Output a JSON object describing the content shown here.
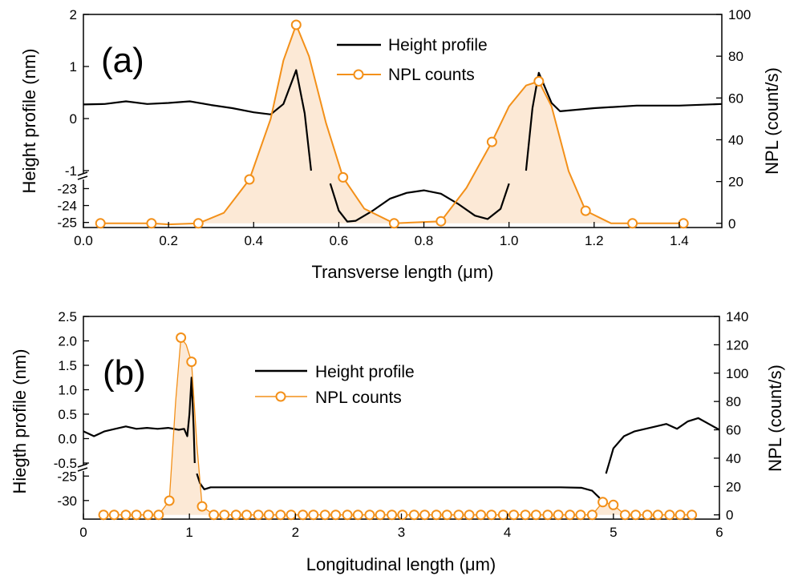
{
  "colors": {
    "height": "#000000",
    "npl": "#F39019",
    "fill": "#FCE9D6"
  },
  "chart_data": [
    {
      "type": "line",
      "panel_label": "(a)",
      "xlabel": "Transverse length (μm)",
      "ylabel_left": "Height profile (nm)",
      "ylabel_right": "NPL (count/s)",
      "xlim": [
        0,
        1.5
      ],
      "x_ticks": [
        "0.0",
        "0.2",
        "0.4",
        "0.6",
        "0.8",
        "1.0",
        "1.2",
        "1.4"
      ],
      "y_left_ticks_upper": [
        "2",
        "1",
        "0",
        "-1"
      ],
      "y_left_ticks_lower": [
        "-23",
        "-24",
        "-25"
      ],
      "y_left_upper_range": [
        -1,
        2
      ],
      "y_left_lower_range": [
        -25.3,
        -22.6
      ],
      "y_right_ticks": [
        "0",
        "20",
        "40",
        "60",
        "80",
        "100"
      ],
      "y_right_range": [
        -2,
        100
      ],
      "legend": [
        "Height profile",
        "NPL counts"
      ],
      "legend_position": "top-center",
      "series": [
        {
          "name": "Height profile",
          "segments": [
            [
              [
                0,
                0.27
              ],
              [
                0.05,
                0.28
              ],
              [
                0.1,
                0.33
              ],
              [
                0.15,
                0.28
              ],
              [
                0.2,
                0.3
              ],
              [
                0.25,
                0.33
              ],
              [
                0.3,
                0.26
              ],
              [
                0.35,
                0.2
              ],
              [
                0.4,
                0.12
              ],
              [
                0.44,
                0.08
              ],
              [
                0.47,
                0.28
              ],
              [
                0.5,
                0.93
              ],
              [
                0.52,
                0.1
              ],
              [
                0.535,
                -1.0
              ]
            ],
            [
              [
                0.58,
                -22.7
              ],
              [
                0.6,
                -24.3
              ],
              [
                0.62,
                -24.95
              ],
              [
                0.64,
                -24.9
              ],
              [
                0.68,
                -24.3
              ],
              [
                0.72,
                -23.6
              ],
              [
                0.76,
                -23.25
              ],
              [
                0.8,
                -23.1
              ],
              [
                0.84,
                -23.3
              ],
              [
                0.88,
                -23.9
              ],
              [
                0.92,
                -24.6
              ],
              [
                0.95,
                -24.8
              ],
              [
                0.98,
                -24.2
              ],
              [
                1.0,
                -22.7
              ]
            ],
            [
              [
                1.04,
                -1.0
              ],
              [
                1.055,
                0.2
              ],
              [
                1.07,
                0.88
              ],
              [
                1.1,
                0.3
              ],
              [
                1.12,
                0.14
              ],
              [
                1.2,
                0.2
              ],
              [
                1.3,
                0.25
              ],
              [
                1.4,
                0.25
              ],
              [
                1.5,
                0.28
              ]
            ]
          ]
        },
        {
          "name": "NPL counts",
          "markers": [
            [
              0.04,
              0
            ],
            [
              0.16,
              0
            ],
            [
              0.27,
              0
            ],
            [
              0.39,
              21
            ],
            [
              0.5,
              95
            ],
            [
              0.61,
              22
            ],
            [
              0.73,
              0
            ],
            [
              0.84,
              1
            ],
            [
              0.96,
              39
            ],
            [
              1.07,
              68
            ],
            [
              1.18,
              6
            ],
            [
              1.29,
              0
            ],
            [
              1.41,
              0
            ]
          ],
          "curve": [
            [
              0.04,
              0
            ],
            [
              0.16,
              0
            ],
            [
              0.2,
              -0.5
            ],
            [
              0.27,
              0
            ],
            [
              0.33,
              5
            ],
            [
              0.39,
              21
            ],
            [
              0.44,
              50
            ],
            [
              0.47,
              78
            ],
            [
              0.5,
              95
            ],
            [
              0.53,
              80
            ],
            [
              0.57,
              48
            ],
            [
              0.61,
              22
            ],
            [
              0.66,
              7
            ],
            [
              0.73,
              0
            ],
            [
              0.84,
              1
            ],
            [
              0.9,
              17
            ],
            [
              0.96,
              39
            ],
            [
              1.0,
              56
            ],
            [
              1.04,
              66
            ],
            [
              1.07,
              68
            ],
            [
              1.1,
              56
            ],
            [
              1.14,
              25
            ],
            [
              1.18,
              6
            ],
            [
              1.24,
              0
            ],
            [
              1.29,
              0
            ],
            [
              1.41,
              0
            ]
          ]
        }
      ]
    },
    {
      "type": "line",
      "panel_label": "(b)",
      "xlabel": "Longitudinal length (μm)",
      "ylabel_left": "Hiegth profile (nm)",
      "ylabel_right": "NPL (count/s)",
      "xlim": [
        0,
        6
      ],
      "x_ticks": [
        "0",
        "1",
        "2",
        "3",
        "4",
        "5",
        "6"
      ],
      "y_left_ticks_upper": [
        "2.5",
        "2.0",
        "1.5",
        "1.0",
        "0.5",
        "0.0",
        "-0.5"
      ],
      "y_left_ticks_lower": [
        "-25",
        "-30"
      ],
      "y_left_upper_range": [
        -0.5,
        2.5
      ],
      "y_left_lower_range": [
        -33.8,
        -24.3
      ],
      "y_right_ticks": [
        "0",
        "20",
        "40",
        "60",
        "80",
        "100",
        "120",
        "140"
      ],
      "y_right_range": [
        -3,
        140
      ],
      "legend": [
        "Height profile",
        "NPL counts"
      ],
      "legend_position": "top-center",
      "series": [
        {
          "name": "Height profile",
          "segments": [
            [
              [
                0,
                0.15
              ],
              [
                0.1,
                0.05
              ],
              [
                0.2,
                0.15
              ],
              [
                0.3,
                0.2
              ],
              [
                0.4,
                0.25
              ],
              [
                0.5,
                0.2
              ],
              [
                0.6,
                0.22
              ],
              [
                0.7,
                0.2
              ],
              [
                0.8,
                0.22
              ],
              [
                0.9,
                0.18
              ],
              [
                0.95,
                0.2
              ],
              [
                0.98,
                0.05
              ],
              [
                1.0,
                0.5
              ],
              [
                1.02,
                1.25
              ],
              [
                1.04,
                0.2
              ],
              [
                1.05,
                -0.5
              ]
            ],
            [
              [
                1.07,
                -24.5
              ],
              [
                1.1,
                -26.5
              ],
              [
                1.14,
                -27.7
              ],
              [
                1.2,
                -27.3
              ],
              [
                1.5,
                -27.3
              ],
              [
                2,
                -27.3
              ],
              [
                3,
                -27.3
              ],
              [
                4,
                -27.3
              ],
              [
                4.5,
                -27.3
              ],
              [
                4.7,
                -27.4
              ],
              [
                4.8,
                -28.0
              ],
              [
                4.87,
                -29.5
              ]
            ],
            [
              [
                4.93,
                -24.5
              ],
              [
                4.96,
                -0.5
              ],
              [
                5.0,
                -0.2
              ],
              [
                5.1,
                0.05
              ],
              [
                5.2,
                0.15
              ],
              [
                5.4,
                0.25
              ],
              [
                5.5,
                0.3
              ],
              [
                5.6,
                0.2
              ],
              [
                5.7,
                0.35
              ],
              [
                5.8,
                0.42
              ],
              [
                5.9,
                0.3
              ],
              [
                6.0,
                0.18
              ]
            ]
          ]
        },
        {
          "name": "NPL counts",
          "markers": [
            [
              0.19,
              0
            ],
            [
              0.29,
              0
            ],
            [
              0.4,
              0
            ],
            [
              0.5,
              0
            ],
            [
              0.61,
              0
            ],
            [
              0.71,
              0
            ],
            [
              0.81,
              10
            ],
            [
              0.92,
              125
            ],
            [
              1.02,
              108
            ],
            [
              1.12,
              6
            ],
            [
              1.23,
              0
            ],
            [
              1.33,
              0
            ],
            [
              1.44,
              0
            ],
            [
              1.54,
              0
            ],
            [
              1.65,
              0
            ],
            [
              1.75,
              0
            ],
            [
              1.86,
              0
            ],
            [
              1.96,
              0
            ],
            [
              2.07,
              0
            ],
            [
              2.17,
              0
            ],
            [
              2.28,
              0
            ],
            [
              2.38,
              0
            ],
            [
              2.49,
              0
            ],
            [
              2.59,
              0
            ],
            [
              2.7,
              0
            ],
            [
              2.8,
              0
            ],
            [
              2.91,
              0
            ],
            [
              3.01,
              0
            ],
            [
              3.12,
              0
            ],
            [
              3.22,
              0
            ],
            [
              3.33,
              0
            ],
            [
              3.43,
              0
            ],
            [
              3.54,
              0
            ],
            [
              3.64,
              0
            ],
            [
              3.75,
              0
            ],
            [
              3.85,
              0
            ],
            [
              3.96,
              0
            ],
            [
              4.06,
              0
            ],
            [
              4.17,
              0
            ],
            [
              4.27,
              0
            ],
            [
              4.38,
              0
            ],
            [
              4.48,
              0
            ],
            [
              4.59,
              0
            ],
            [
              4.69,
              0
            ],
            [
              4.8,
              0
            ],
            [
              4.9,
              9
            ],
            [
              5.0,
              7
            ],
            [
              5.11,
              0
            ],
            [
              5.21,
              0
            ],
            [
              5.32,
              0
            ],
            [
              5.42,
              0
            ],
            [
              5.53,
              0
            ],
            [
              5.63,
              0
            ],
            [
              5.74,
              0
            ]
          ],
          "curve": [
            [
              0.19,
              0
            ],
            [
              0.71,
              0
            ],
            [
              0.81,
              10
            ],
            [
              0.87,
              80
            ],
            [
              0.92,
              125
            ],
            [
              0.97,
              120
            ],
            [
              1.02,
              108
            ],
            [
              1.07,
              50
            ],
            [
              1.12,
              6
            ],
            [
              1.23,
              0
            ],
            [
              4.8,
              0
            ],
            [
              4.9,
              9
            ],
            [
              5.0,
              7
            ],
            [
              5.11,
              0
            ],
            [
              5.74,
              0
            ]
          ]
        }
      ]
    }
  ]
}
